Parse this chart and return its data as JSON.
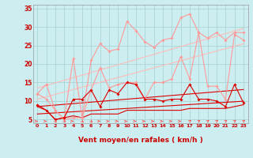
{
  "x": [
    0,
    1,
    2,
    3,
    4,
    5,
    6,
    7,
    8,
    9,
    10,
    11,
    12,
    13,
    14,
    15,
    16,
    17,
    18,
    19,
    20,
    21,
    22,
    23
  ],
  "series": [
    {
      "name": "pink_upper",
      "color": "#ff9999",
      "marker": "D",
      "markersize": 2.0,
      "lw": 0.8,
      "values": [
        12.0,
        14.5,
        7.5,
        5.0,
        21.5,
        5.5,
        21.0,
        25.5,
        23.5,
        24.0,
        31.5,
        29.0,
        26.0,
        24.5,
        26.5,
        27.0,
        32.5,
        33.5,
        28.5,
        27.0,
        28.5,
        26.5,
        28.5,
        28.5
      ]
    },
    {
      "name": "pink_lower",
      "color": "#ff9999",
      "marker": "D",
      "markersize": 2.0,
      "lw": 0.8,
      "values": [
        12.0,
        10.5,
        7.5,
        5.0,
        5.5,
        5.5,
        13.0,
        19.0,
        13.5,
        14.5,
        15.0,
        15.0,
        10.5,
        15.0,
        15.0,
        16.0,
        22.0,
        16.0,
        28.5,
        14.0,
        14.0,
        10.5,
        28.0,
        26.5
      ]
    },
    {
      "name": "trend_pink_upper",
      "color": "#ffbbbb",
      "marker": null,
      "markersize": 0,
      "lw": 0.8,
      "values": [
        13.5,
        14.2,
        14.9,
        15.6,
        16.3,
        17.0,
        17.7,
        18.4,
        19.1,
        19.8,
        20.5,
        21.2,
        21.9,
        22.6,
        23.3,
        24.0,
        24.7,
        25.4,
        26.1,
        26.8,
        27.5,
        28.2,
        28.9,
        29.6
      ]
    },
    {
      "name": "trend_pink_lower",
      "color": "#ffbbbb",
      "marker": null,
      "markersize": 0,
      "lw": 0.8,
      "values": [
        10.5,
        11.15,
        11.8,
        12.45,
        13.1,
        13.75,
        14.4,
        15.05,
        15.7,
        16.35,
        17.0,
        17.65,
        18.3,
        18.95,
        19.6,
        20.25,
        20.9,
        21.55,
        22.2,
        22.85,
        23.5,
        24.15,
        24.8,
        25.45
      ]
    },
    {
      "name": "red_upper",
      "color": "#dd0000",
      "marker": "D",
      "markersize": 2.0,
      "lw": 0.8,
      "values": [
        9.0,
        7.5,
        5.0,
        5.5,
        10.5,
        10.5,
        13.0,
        8.5,
        13.0,
        12.0,
        15.0,
        14.5,
        10.5,
        10.5,
        10.0,
        10.5,
        10.5,
        14.5,
        10.5,
        10.5,
        10.0,
        8.5,
        14.5,
        9.5
      ]
    },
    {
      "name": "red_lower",
      "color": "#dd0000",
      "marker": null,
      "markersize": 0,
      "lw": 0.8,
      "values": [
        8.5,
        7.5,
        5.0,
        5.5,
        6.0,
        5.5,
        6.5,
        6.5,
        6.5,
        6.5,
        7.5,
        7.5,
        7.5,
        7.5,
        7.5,
        7.5,
        7.5,
        8.0,
        8.0,
        8.0,
        8.0,
        8.0,
        8.5,
        9.0
      ]
    },
    {
      "name": "trend_red_upper",
      "color": "#dd0000",
      "marker": null,
      "markersize": 0,
      "lw": 0.8,
      "values": [
        8.5,
        8.7,
        8.9,
        9.1,
        9.3,
        9.5,
        9.7,
        9.9,
        10.1,
        10.3,
        10.5,
        10.7,
        10.9,
        11.1,
        11.3,
        11.5,
        11.7,
        11.9,
        12.1,
        12.3,
        12.5,
        12.7,
        12.9,
        13.1
      ]
    },
    {
      "name": "trend_red_lower",
      "color": "#dd0000",
      "marker": null,
      "markersize": 0,
      "lw": 0.8,
      "values": [
        6.5,
        6.65,
        6.8,
        6.95,
        7.1,
        7.25,
        7.4,
        7.55,
        7.7,
        7.85,
        8.0,
        8.15,
        8.3,
        8.45,
        8.6,
        8.75,
        8.9,
        9.05,
        9.2,
        9.35,
        9.5,
        9.65,
        9.8,
        9.95
      ]
    }
  ],
  "wind_angles_deg": [
    90,
    90,
    135,
    135,
    90,
    135,
    135,
    90,
    90,
    90,
    90,
    90,
    90,
    90,
    90,
    90,
    90,
    45,
    45,
    45,
    45,
    45,
    45,
    45
  ],
  "xlabel": "Vent moyen/en rafales ( km/h )",
  "xlim": [
    -0.5,
    23.5
  ],
  "ylim": [
    4,
    36
  ],
  "yticks": [
    5,
    10,
    15,
    20,
    25,
    30,
    35
  ],
  "xticks": [
    0,
    1,
    2,
    3,
    4,
    5,
    6,
    7,
    8,
    9,
    10,
    11,
    12,
    13,
    14,
    15,
    16,
    17,
    18,
    19,
    20,
    21,
    22,
    23
  ],
  "bg_color": "#cceef0",
  "grid_color": "#aad4d8",
  "text_color": "#cc0000",
  "arrow_color": "#ff5555"
}
